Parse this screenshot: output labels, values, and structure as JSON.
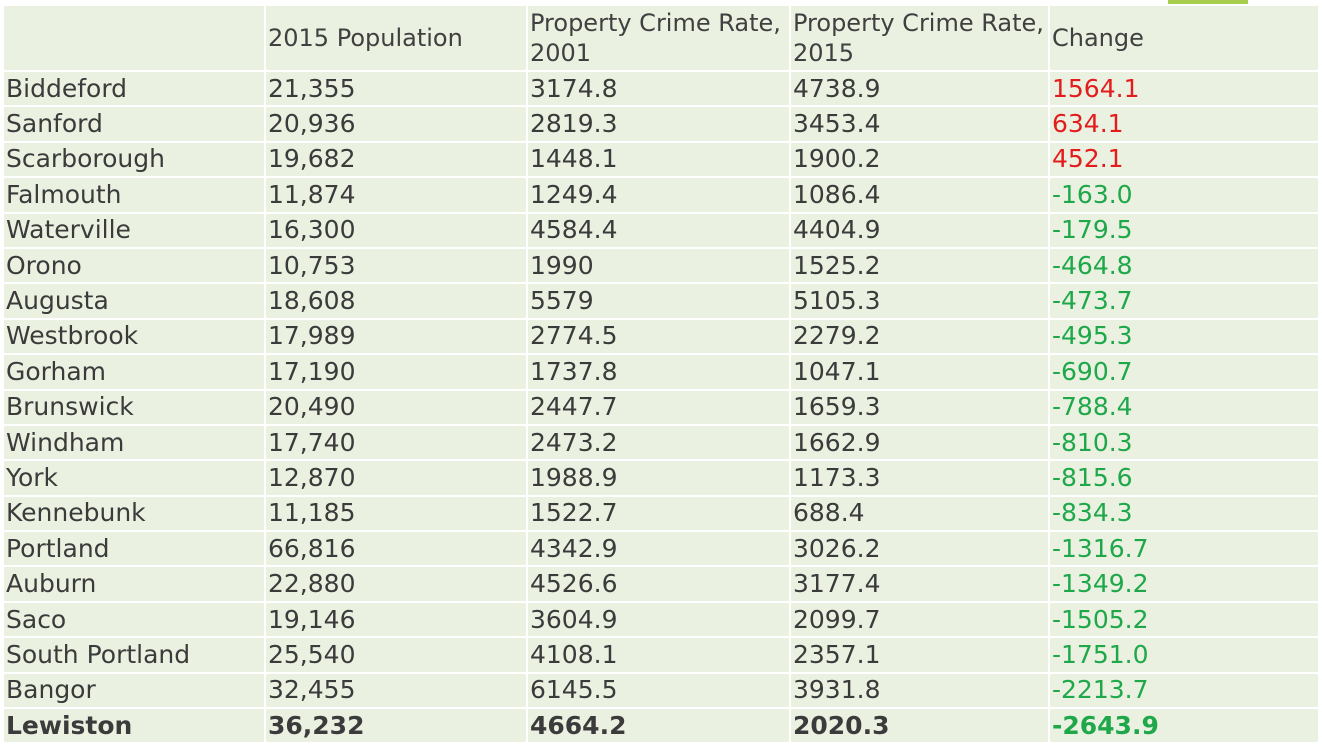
{
  "table": {
    "headers": [
      "",
      "2015 Population",
      "Property Crime Rate, 2001",
      "Property Crime Rate, 2015",
      "Change"
    ],
    "rows": [
      {
        "city": "Biddeford",
        "population": "21,355",
        "rate2001": "3174.8",
        "rate2015": "4738.9",
        "change": "1564.1",
        "trend": "pos"
      },
      {
        "city": "Sanford",
        "population": "20,936",
        "rate2001": "2819.3",
        "rate2015": "3453.4",
        "change": "634.1",
        "trend": "pos"
      },
      {
        "city": "Scarborough",
        "population": "19,682",
        "rate2001": "1448.1",
        "rate2015": "1900.2",
        "change": "452.1",
        "trend": "pos"
      },
      {
        "city": "Falmouth",
        "population": "11,874",
        "rate2001": "1249.4",
        "rate2015": "1086.4",
        "change": "-163.0",
        "trend": "neg"
      },
      {
        "city": "Waterville",
        "population": "16,300",
        "rate2001": "4584.4",
        "rate2015": "4404.9",
        "change": "-179.5",
        "trend": "neg"
      },
      {
        "city": "Orono",
        "population": "10,753",
        "rate2001": "1990",
        "rate2015": "1525.2",
        "change": "-464.8",
        "trend": "neg"
      },
      {
        "city": "Augusta",
        "population": "18,608",
        "rate2001": "5579",
        "rate2015": "5105.3",
        "change": "-473.7",
        "trend": "neg"
      },
      {
        "city": "Westbrook",
        "population": "17,989",
        "rate2001": "2774.5",
        "rate2015": "2279.2",
        "change": "-495.3",
        "trend": "neg"
      },
      {
        "city": "Gorham",
        "population": "17,190",
        "rate2001": "1737.8",
        "rate2015": "1047.1",
        "change": "-690.7",
        "trend": "neg"
      },
      {
        "city": "Brunswick",
        "population": "20,490",
        "rate2001": "2447.7",
        "rate2015": "1659.3",
        "change": "-788.4",
        "trend": "neg"
      },
      {
        "city": "Windham",
        "population": "17,740",
        "rate2001": "2473.2",
        "rate2015": "1662.9",
        "change": "-810.3",
        "trend": "neg"
      },
      {
        "city": "York",
        "population": "12,870",
        "rate2001": "1988.9",
        "rate2015": "1173.3",
        "change": "-815.6",
        "trend": "neg"
      },
      {
        "city": "Kennebunk",
        "population": "11,185",
        "rate2001": "1522.7",
        "rate2015": "688.4",
        "change": "-834.3",
        "trend": "neg"
      },
      {
        "city": "Portland",
        "population": "66,816",
        "rate2001": "4342.9",
        "rate2015": "3026.2",
        "change": "-1316.7",
        "trend": "neg"
      },
      {
        "city": "Auburn",
        "population": "22,880",
        "rate2001": "4526.6",
        "rate2015": "3177.4",
        "change": "-1349.2",
        "trend": "neg"
      },
      {
        "city": "Saco",
        "population": "19,146",
        "rate2001": "3604.9",
        "rate2015": "2099.7",
        "change": "-1505.2",
        "trend": "neg"
      },
      {
        "city": "South Portland",
        "population": "25,540",
        "rate2001": "4108.1",
        "rate2015": "2357.1",
        "change": "-1751.0",
        "trend": "neg"
      },
      {
        "city": "Bangor",
        "population": "32,455",
        "rate2001": "6145.5",
        "rate2015": "3931.8",
        "change": "-2213.7",
        "trend": "neg"
      },
      {
        "city": "Lewiston",
        "population": "36,232",
        "rate2001": "4664.2",
        "rate2015": "2020.3",
        "change": "-2643.9",
        "trend": "neg",
        "bold": true
      }
    ]
  },
  "colors": {
    "cell_background": "#eaf1e1",
    "increase": "#e31c1c",
    "decrease": "#1ea84a",
    "accent": "#a8cd4f"
  }
}
